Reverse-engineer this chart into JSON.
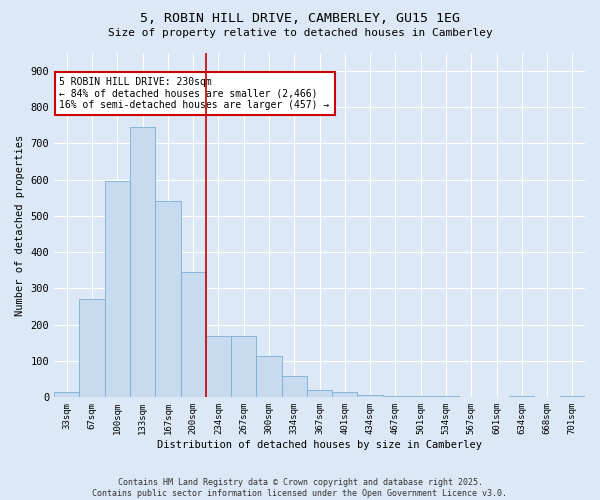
{
  "title1": "5, ROBIN HILL DRIVE, CAMBERLEY, GU15 1EG",
  "title2": "Size of property relative to detached houses in Camberley",
  "xlabel": "Distribution of detached houses by size in Camberley",
  "ylabel": "Number of detached properties",
  "categories": [
    "33sqm",
    "67sqm",
    "100sqm",
    "133sqm",
    "167sqm",
    "200sqm",
    "234sqm",
    "267sqm",
    "300sqm",
    "334sqm",
    "367sqm",
    "401sqm",
    "434sqm",
    "467sqm",
    "501sqm",
    "534sqm",
    "567sqm",
    "601sqm",
    "634sqm",
    "668sqm",
    "701sqm"
  ],
  "values": [
    15,
    270,
    595,
    745,
    540,
    345,
    170,
    170,
    115,
    60,
    20,
    15,
    7,
    5,
    5,
    3,
    0,
    0,
    3,
    0,
    3
  ],
  "bar_color": "#c8daf0",
  "bar_edge_color": "#7aafd4",
  "property_line_x": 6.0,
  "annotation_text": "5 ROBIN HILL DRIVE: 230sqm\n← 84% of detached houses are smaller (2,466)\n16% of semi-detached houses are larger (457) →",
  "annotation_box_color": "#ffffff",
  "annotation_box_edge_color": "#cc0000",
  "line_color": "#cc0000",
  "bg_color": "#dce8f5",
  "footer1": "Contains HM Land Registry data © Crown copyright and database right 2025.",
  "footer2": "Contains public sector information licensed under the Open Government Licence v3.0.",
  "ylim": [
    0,
    950
  ],
  "yticks": [
    0,
    100,
    200,
    300,
    400,
    500,
    600,
    700,
    800,
    900
  ]
}
